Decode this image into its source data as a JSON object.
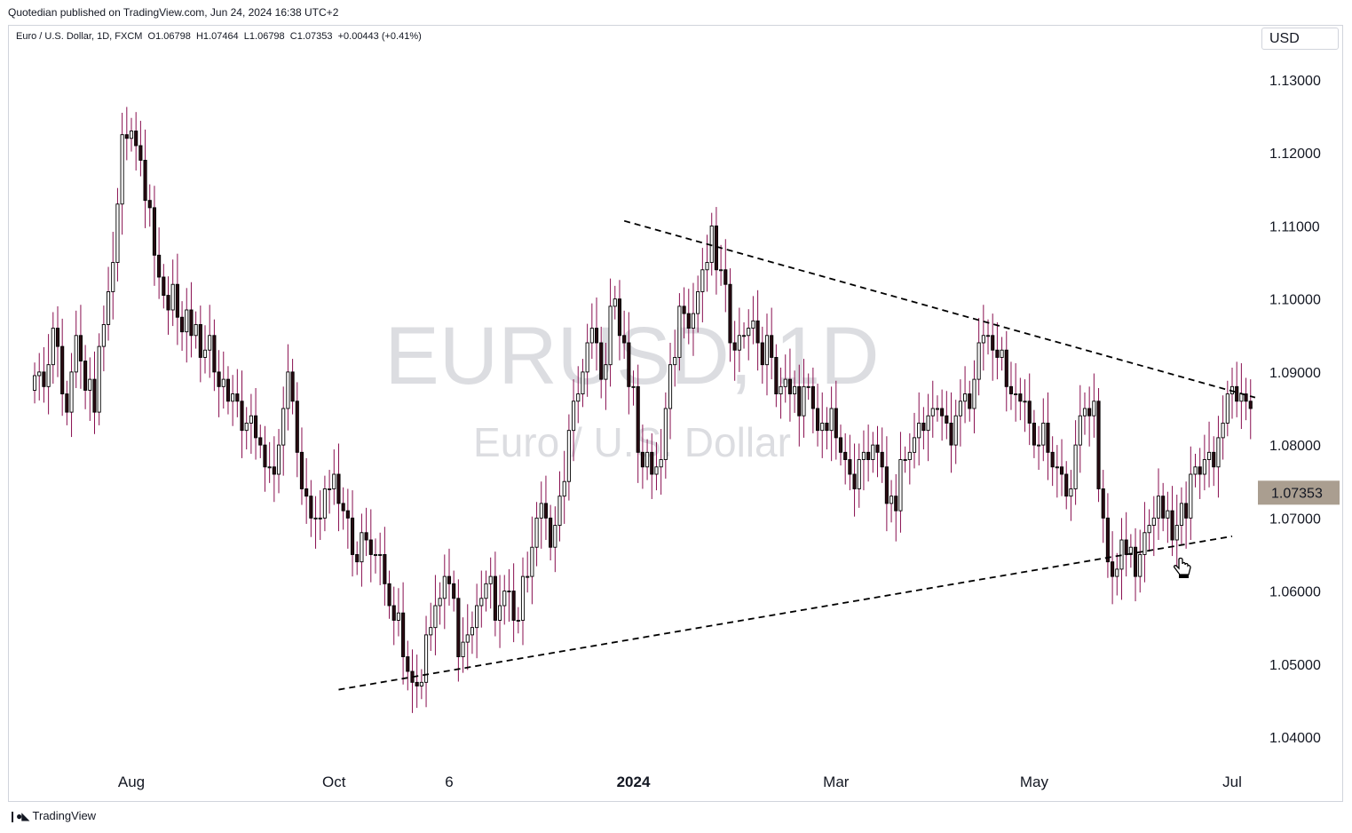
{
  "header": {
    "published": "Quotedian published on TradingView.com, Jun 24, 2024 16:38 UTC+2",
    "symbol_line": "Euro / U.S. Dollar, 1D, FXCM  O1.06798  H1.07464  L1.06798  C1.07353  +0.00443 (+0.41%)"
  },
  "currency": "USD",
  "watermark": {
    "symbol": "EURUSD, 1D",
    "name": "Euro / U.S. Dollar"
  },
  "footer": {
    "brand": "TradingView",
    "icon": "tradingview-logo-icon"
  },
  "colors": {
    "up": "#ffffff",
    "down": "#2a0a12",
    "wick": "#880e4f",
    "line": "#000000",
    "price_tag": "#aa9e90"
  },
  "chart_data": {
    "type": "candlestick",
    "instrument": "EURUSD",
    "interval": "1D",
    "ylim": [
      1.035,
      1.135
    ],
    "y_ticks": [
      "1.04000",
      "1.05000",
      "1.06000",
      "1.07000",
      "1.08000",
      "1.09000",
      "1.10000",
      "1.11000",
      "1.12000",
      "1.13000"
    ],
    "x_ticks": [
      "Aug",
      "Oct",
      "6",
      "2024",
      "Mar",
      "May",
      "Jul"
    ],
    "last_price": "1.07353",
    "last": {
      "open": 1.06798,
      "high": 1.07464,
      "low": 1.06798,
      "close": 1.07353,
      "change": "+0.00443 (+0.41%)"
    },
    "trendlines": [
      {
        "name": "resistance",
        "style": "dashed",
        "from": [
          "2023-12-28",
          1.1107
        ],
        "to": [
          "2024-07-06",
          1.0865
        ]
      },
      {
        "name": "support",
        "style": "dashed",
        "from": [
          "2023-10-03",
          1.0465
        ],
        "to": [
          "2024-07-01",
          1.0675
        ]
      }
    ],
    "x_start": "2023-07-03",
    "closes": [
      1.0895,
      1.09,
      1.088,
      1.091,
      1.096,
      1.0935,
      1.087,
      1.0845,
      1.09,
      1.095,
      1.0915,
      1.0875,
      1.089,
      1.0845,
      1.0935,
      1.0965,
      1.101,
      1.105,
      1.113,
      1.1225,
      1.122,
      1.123,
      1.121,
      1.119,
      1.1135,
      1.1125,
      1.106,
      1.103,
      1.1005,
      1.0985,
      1.102,
      1.0975,
      1.0955,
      1.0985,
      1.095,
      1.0965,
      1.092,
      1.093,
      1.095,
      1.09,
      1.088,
      1.089,
      1.086,
      1.087,
      1.086,
      1.082,
      1.083,
      1.084,
      1.081,
      1.08,
      1.077,
      1.077,
      1.076,
      1.08,
      1.085,
      1.09,
      1.086,
      1.079,
      1.074,
      1.073,
      1.07,
      1.07,
      1.07,
      1.074,
      1.074,
      1.076,
      1.072,
      1.071,
      1.07,
      1.065,
      1.064,
      1.068,
      1.067,
      1.065,
      1.065,
      1.065,
      1.061,
      1.058,
      1.056,
      1.057,
      1.051,
      1.049,
      1.0475,
      1.047,
      1.0475,
      1.054,
      1.055,
      1.058,
      1.059,
      1.062,
      1.061,
      1.059,
      1.051,
      1.053,
      1.054,
      1.055,
      1.058,
      1.059,
      1.061,
      1.062,
      1.056,
      1.058,
      1.06,
      1.06,
      1.056,
      1.056,
      1.062,
      1.062,
      1.066,
      1.07,
      1.072,
      1.07,
      1.066,
      1.069,
      1.073,
      1.075,
      1.082,
      1.086,
      1.087,
      1.09,
      1.094,
      1.096,
      1.094,
      1.089,
      1.091,
      1.099,
      1.1,
      1.095,
      1.094,
      1.088,
      1.088,
      1.079,
      1.077,
      1.079,
      1.076,
      1.077,
      1.078,
      1.085,
      1.091,
      1.092,
      1.099,
      1.098,
      1.096,
      1.098,
      1.101,
      1.104,
      1.105,
      1.11,
      1.104,
      1.104,
      1.102,
      1.094,
      1.093,
      1.095,
      1.095,
      1.096,
      1.097,
      1.094,
      1.091,
      1.095,
      1.092,
      1.087,
      1.088,
      1.089,
      1.087,
      1.088,
      1.084,
      1.088,
      1.088,
      1.085,
      1.082,
      1.083,
      1.082,
      1.085,
      1.081,
      1.079,
      1.078,
      1.076,
      1.074,
      1.078,
      1.079,
      1.078,
      1.08,
      1.079,
      1.077,
      1.072,
      1.073,
      1.071,
      1.078,
      1.078,
      1.079,
      1.081,
      1.083,
      1.082,
      1.084,
      1.085,
      1.085,
      1.084,
      1.083,
      1.08,
      1.084,
      1.086,
      1.087,
      1.085,
      1.089,
      1.094,
      1.095,
      1.095,
      1.093,
      1.092,
      1.093,
      1.088,
      1.087,
      1.087,
      1.086,
      1.086,
      1.083,
      1.08,
      1.08,
      1.083,
      1.079,
      1.077,
      1.077,
      1.076,
      1.073,
      1.074,
      1.08,
      1.084,
      1.085,
      1.084,
      1.086,
      1.074,
      1.07,
      1.064,
      1.062,
      1.063,
      1.067,
      1.065,
      1.066,
      1.062,
      1.065,
      1.068,
      1.069,
      1.07,
      1.073,
      1.07,
      1.071,
      1.067,
      1.069,
      1.072,
      1.07,
      1.076,
      1.077,
      1.076,
      1.078,
      1.079,
      1.077,
      1.081,
      1.083,
      1.087,
      1.088,
      1.086,
      1.087,
      1.086,
      1.085,
      1.081,
      1.082,
      1.086,
      1.087,
      1.084,
      1.08,
      1.082,
      1.086,
      1.09,
      1.088,
      1.089,
      1.088,
      1.08,
      1.078,
      1.074,
      1.078,
      1.077,
      1.072,
      1.07,
      1.071,
      1.074,
      1.073,
      1.073,
      1.069,
      1.0735
    ]
  }
}
